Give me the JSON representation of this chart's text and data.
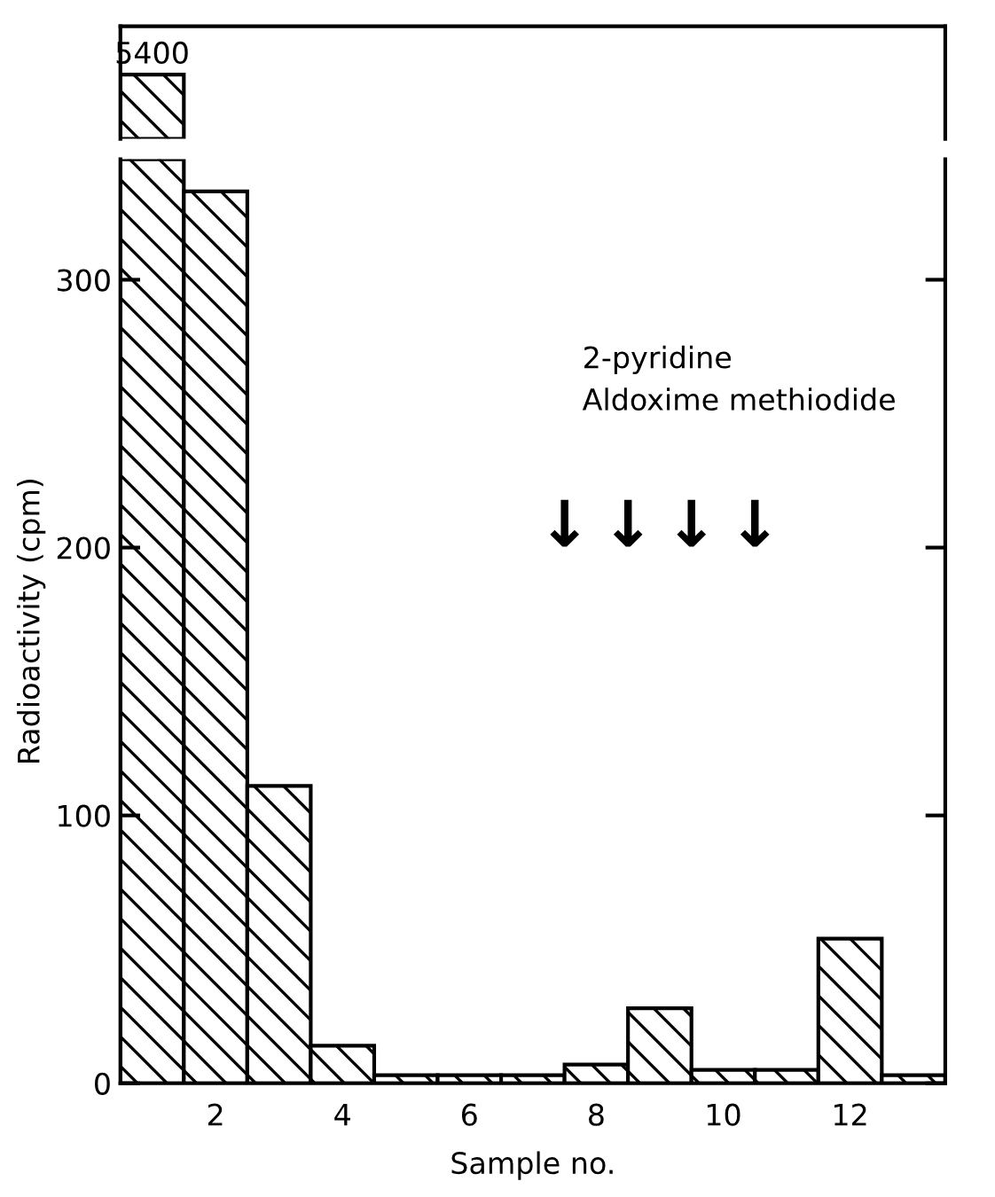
{
  "chart_data": [
    {
      "type": "bar",
      "categories": [
        null,
        null,
        null,
        null,
        null,
        null,
        null,
        null,
        null,
        null,
        null,
        null,
        null
      ],
      "values": [
        5400,
        null,
        null,
        null,
        null,
        null,
        null,
        null,
        null,
        null,
        null,
        null,
        null
      ],
      "data_labels": true,
      "color": "#000000",
      "grid": false
    },
    {
      "type": "bar",
      "x": [
        1,
        2,
        3,
        4,
        5,
        6,
        7,
        8,
        9,
        10,
        11,
        12,
        13
      ],
      "values": [
        345,
        333,
        111,
        14,
        3,
        3,
        3,
        7,
        28,
        5,
        5,
        54,
        3
      ],
      "color": "#000000",
      "xlim": [
        0.5,
        13.5
      ],
      "ylim": [
        0,
        345
      ],
      "xticks": [
        2,
        4,
        6,
        8,
        10,
        12
      ],
      "yticks": [
        0,
        100,
        200,
        300
      ],
      "xlabel": "Sample no.",
      "ylabel": "Radioactivity (cpm)",
      "grid": false,
      "annotations": [
        "2-pyridine\nAldoxime methiodide",
        "↓",
        "↓",
        "↓",
        "↓"
      ]
    }
  ]
}
